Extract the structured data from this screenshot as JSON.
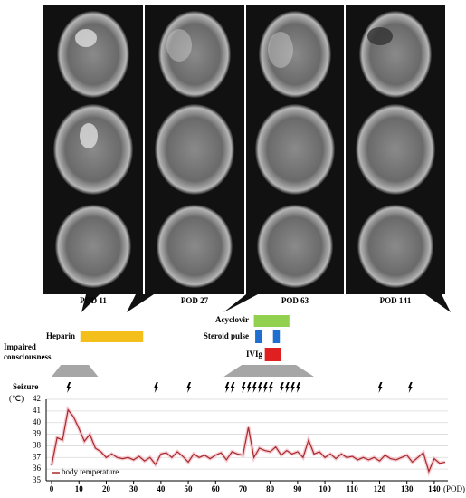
{
  "chart_data": {
    "type": "line",
    "panels": [
      "POD 11",
      "POD 27",
      "POD 63",
      "POD 141"
    ],
    "treatments": [
      {
        "name": "Heparin",
        "color": "#f5bf1b",
        "periods": [
          [
            10.5,
            33.5
          ]
        ]
      },
      {
        "name": "Acyclovir",
        "color": "#92d050",
        "periods": [
          [
            74,
            87
          ]
        ]
      },
      {
        "name": "Steroid pulse",
        "color": "#1f6fd0",
        "periods": [
          [
            74.5,
            77
          ],
          [
            81,
            83.5
          ]
        ]
      },
      {
        "name": "IVIg",
        "color": "#e02020",
        "periods": [
          [
            78,
            84
          ]
        ]
      }
    ],
    "consciousness_label": "Impaired consciousness",
    "consciousness_periods": [
      [
        0,
        17
      ],
      [
        63,
        96
      ]
    ],
    "seizure_label": "Seizure",
    "seizure_days": [
      6,
      38,
      50,
      64,
      66,
      70,
      72,
      74,
      76,
      78,
      80,
      84,
      86,
      88,
      90,
      120,
      131
    ],
    "x_label": "(POD)",
    "y_label": "(℃)",
    "x": [
      0,
      2,
      4,
      6,
      8,
      10,
      12,
      14,
      16,
      18,
      20,
      22,
      24,
      26,
      28,
      30,
      32,
      34,
      36,
      38,
      40,
      42,
      44,
      46,
      48,
      50,
      52,
      54,
      56,
      58,
      60,
      62,
      64,
      66,
      68,
      70,
      72,
      74,
      76,
      78,
      80,
      82,
      84,
      86,
      88,
      90,
      92,
      94,
      96,
      98,
      100,
      102,
      104,
      106,
      108,
      110,
      112,
      114,
      116,
      118,
      120,
      122,
      124,
      126,
      128,
      130,
      132,
      134,
      136,
      138,
      140,
      142,
      144
    ],
    "series": [
      {
        "name": "body temperature",
        "color": "#a52a2a",
        "values": [
          36.3,
          38.7,
          38.5,
          41.1,
          40.5,
          39.5,
          38.4,
          39.0,
          37.8,
          37.5,
          37.0,
          37.3,
          37.0,
          36.9,
          37.0,
          36.8,
          37.1,
          36.7,
          37.0,
          36.4,
          37.3,
          37.4,
          37.0,
          37.5,
          37.1,
          36.6,
          37.3,
          37.0,
          37.2,
          36.9,
          37.2,
          37.4,
          36.8,
          37.5,
          37.3,
          37.2,
          39.6,
          37.0,
          37.8,
          37.6,
          37.5,
          37.9,
          37.2,
          37.6,
          37.3,
          37.5,
          37.0,
          38.5,
          37.3,
          37.5,
          37.0,
          37.3,
          36.9,
          37.3,
          37.0,
          37.1,
          36.8,
          37.0,
          36.8,
          37.0,
          36.7,
          37.2,
          36.9,
          36.8,
          37.0,
          37.2,
          36.6,
          37.0,
          37.4,
          35.8,
          36.9,
          36.5,
          36.6
        ]
      }
    ],
    "xlim": [
      -2,
      145
    ],
    "ylim": [
      35,
      42
    ],
    "xticks": [
      0,
      10,
      20,
      30,
      40,
      50,
      60,
      70,
      80,
      90,
      100,
      110,
      120,
      130,
      140
    ],
    "yticks": [
      35,
      36,
      37,
      38,
      39,
      40,
      41,
      42
    ],
    "grid": true
  }
}
